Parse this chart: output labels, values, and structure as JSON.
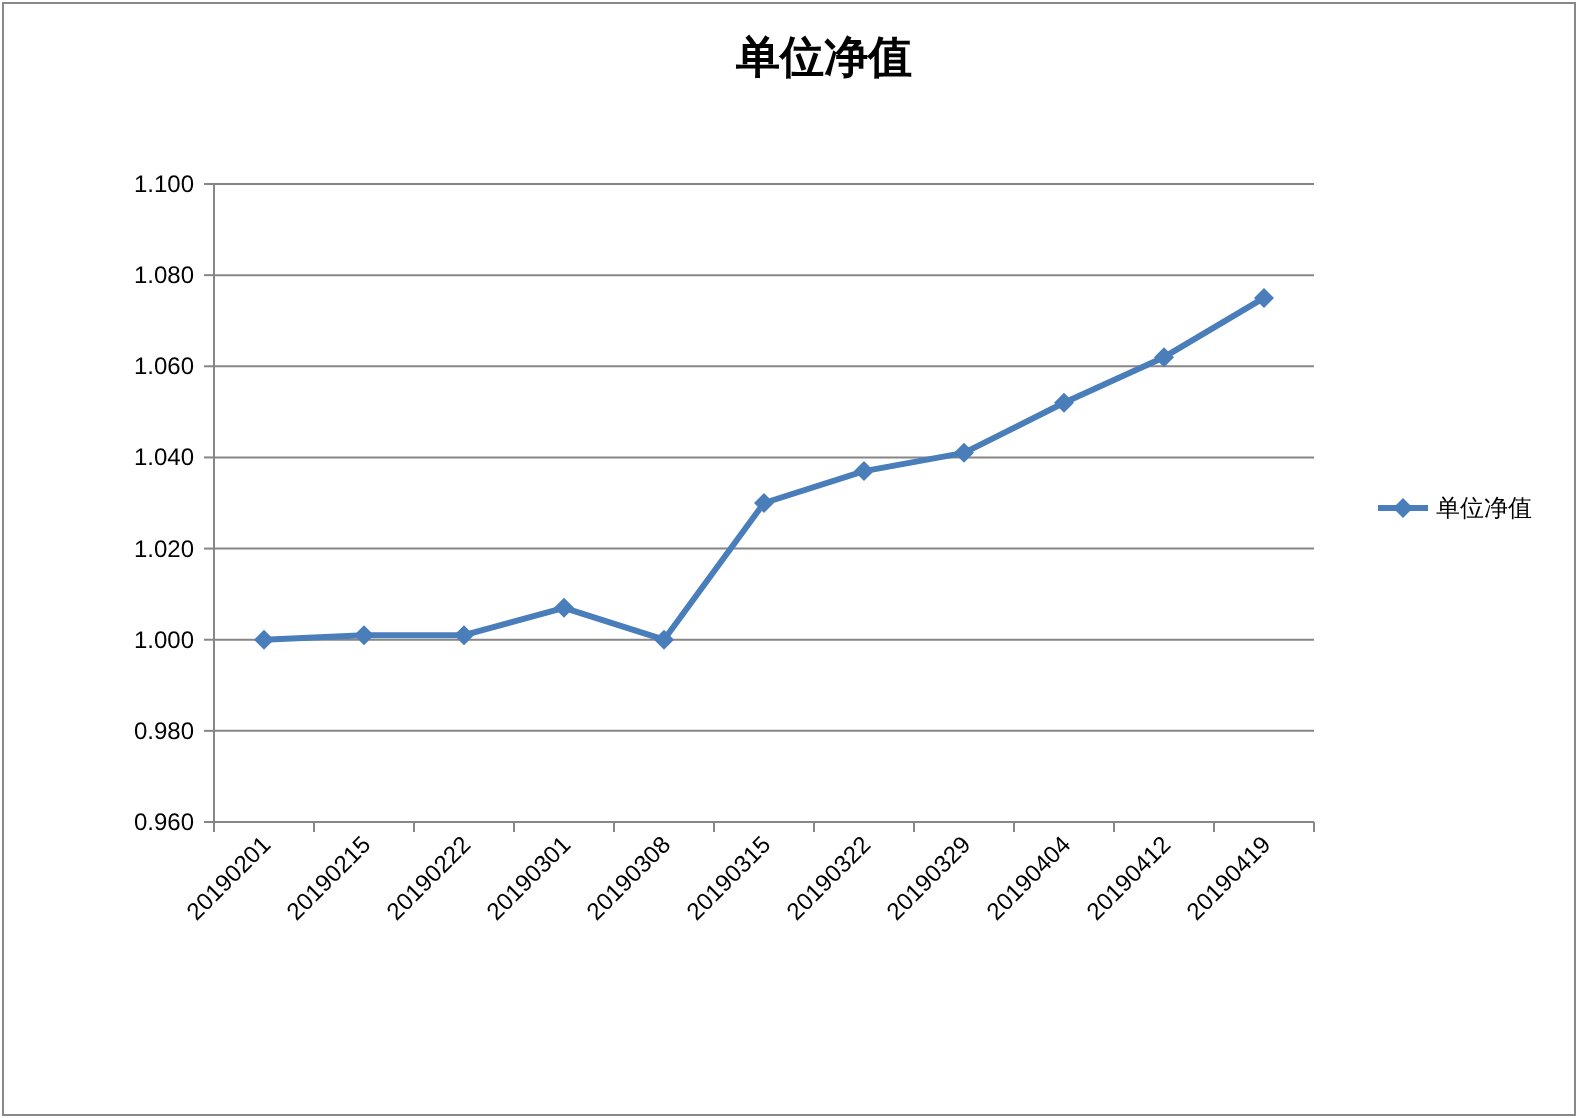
{
  "chart_data": {
    "type": "line",
    "title": "单位净值",
    "categories": [
      "20190201",
      "20190215",
      "20190222",
      "20190301",
      "20190308",
      "20190315",
      "20190322",
      "20190329",
      "20190404",
      "20190412",
      "20190419"
    ],
    "series": [
      {
        "name": "单位净值",
        "color": "#4a7ebb",
        "values": [
          1.0,
          1.001,
          1.001,
          1.007,
          1.0,
          1.03,
          1.037,
          1.041,
          1.052,
          1.062,
          1.075
        ]
      }
    ],
    "ylim": [
      0.96,
      1.1
    ],
    "yticks": [
      {
        "value": 0.96,
        "label": "0.960"
      },
      {
        "value": 0.98,
        "label": "0.980"
      },
      {
        "value": 1.0,
        "label": "1.000"
      },
      {
        "value": 1.02,
        "label": "1.020"
      },
      {
        "value": 1.04,
        "label": "1.040"
      },
      {
        "value": 1.06,
        "label": "1.060"
      },
      {
        "value": 1.08,
        "label": "1.080"
      },
      {
        "value": 1.1,
        "label": "1.100"
      }
    ],
    "grid": "y",
    "legend": "right",
    "marker": "diamond",
    "line_style": "solid"
  }
}
